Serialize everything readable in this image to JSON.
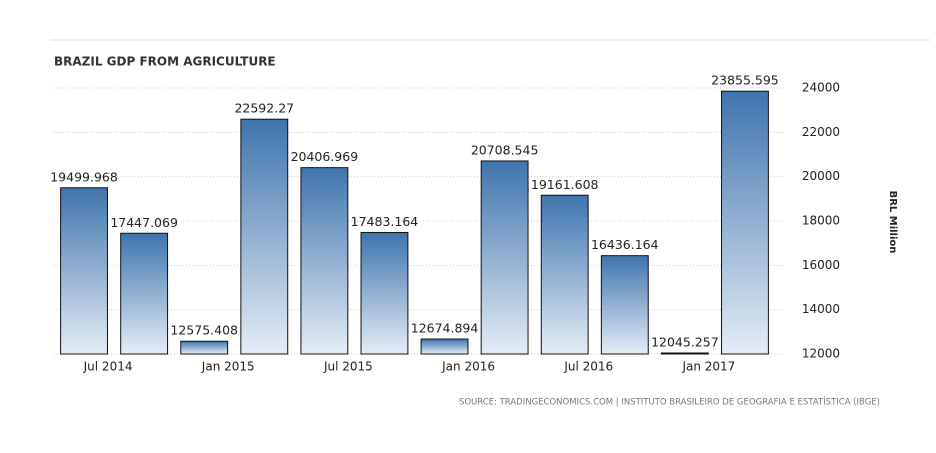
{
  "chart_data": {
    "type": "bar",
    "title": "BRAZIL GDP FROM AGRICULTURE",
    "y_axis_label": "BRL Million",
    "source": "SOURCE: TRADINGECONOMICS.COM | INSTITUTO BRASILEIRO DE GEOGRAFIA E ESTATÍSTICA (IBGE)",
    "categories": [
      "Jul 2014",
      null,
      "Jan 2015",
      null,
      "Jul 2015",
      null,
      "Jan 2016",
      null,
      "Jul 2016",
      null,
      "Jan 2017",
      null
    ],
    "values": [
      19499.968,
      17447.069,
      12575.408,
      22592.27,
      20406.969,
      17483.164,
      12674.894,
      20708.545,
      19161.608,
      16436.164,
      12045.257,
      23855.595
    ],
    "color": "#3f74ad",
    "ylim": [
      12000,
      24000
    ],
    "yticks": [
      12000,
      14000,
      16000,
      18000,
      20000,
      22000,
      24000
    ],
    "grid": true
  }
}
